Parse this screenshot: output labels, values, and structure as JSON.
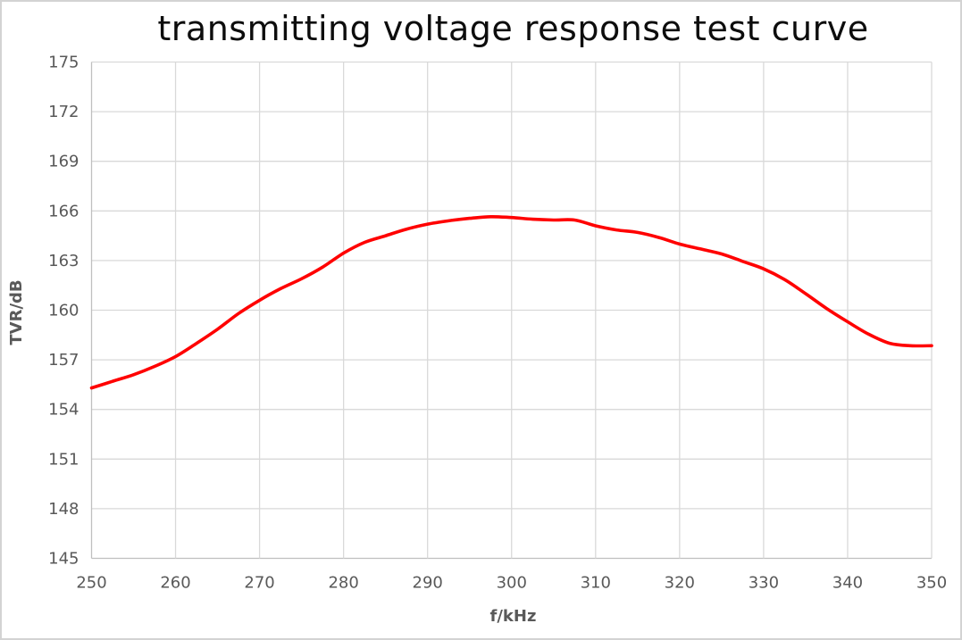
{
  "chart_data": {
    "type": "line",
    "title": "transmitting voltage response test curve",
    "xlabel": "f/kHz",
    "ylabel": "TVR/dB",
    "xlim": [
      250,
      350
    ],
    "ylim": [
      145,
      175
    ],
    "x_ticks": [
      250,
      260,
      270,
      280,
      290,
      300,
      310,
      320,
      330,
      340,
      350
    ],
    "y_ticks": [
      145,
      148,
      151,
      154,
      157,
      160,
      163,
      166,
      169,
      172,
      175
    ],
    "grid": true,
    "legend": false,
    "series": [
      {
        "name": "TVR",
        "color": "#ff0000",
        "x": [
          250,
          252.5,
          255,
          257.5,
          260,
          262.5,
          265,
          267.5,
          270,
          272.5,
          275,
          277.5,
          280,
          282.5,
          285,
          287.5,
          290,
          292.5,
          295,
          297.5,
          300,
          302.5,
          305,
          307.5,
          310,
          312.5,
          315,
          317.5,
          320,
          322.5,
          325,
          327.5,
          330,
          332.5,
          335,
          337.5,
          340,
          342.5,
          345,
          347.5,
          350
        ],
        "y": [
          155.3,
          155.7,
          156.1,
          156.6,
          157.2,
          158.0,
          158.85,
          159.8,
          160.6,
          161.3,
          161.9,
          162.6,
          163.45,
          164.1,
          164.5,
          164.9,
          165.2,
          165.4,
          165.55,
          165.65,
          165.6,
          165.5,
          165.45,
          165.45,
          165.1,
          164.85,
          164.7,
          164.4,
          164.0,
          163.7,
          163.4,
          162.95,
          162.5,
          161.85,
          161.0,
          160.1,
          159.3,
          158.55,
          158.0,
          157.85,
          157.85
        ]
      }
    ],
    "colors": {
      "line": "#ff0000",
      "gridline": "#d9d9d9",
      "axis_line": "#bfbfbf",
      "tick_label": "#595959",
      "axis_title": "#595959",
      "chart_title": "#0d0d0d",
      "background": "#ffffff"
    }
  }
}
